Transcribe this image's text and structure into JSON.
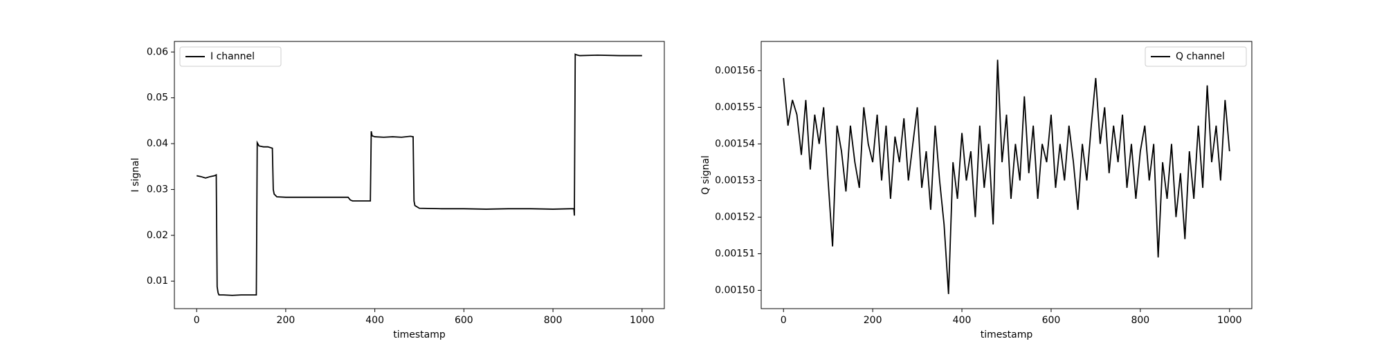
{
  "chart_data": [
    {
      "type": "line",
      "xlabel": "timestamp",
      "ylabel": "I signal",
      "legend": "upper left",
      "x": [
        0,
        10,
        20,
        30,
        40,
        44,
        46,
        48,
        50,
        60,
        80,
        100,
        120,
        134,
        136,
        140,
        150,
        160,
        170,
        172,
        174,
        180,
        200,
        250,
        300,
        340,
        345,
        350,
        380,
        390,
        392,
        394,
        400,
        420,
        440,
        460,
        480,
        486,
        488,
        490,
        500,
        550,
        600,
        650,
        700,
        750,
        800,
        840,
        847,
        848,
        850,
        852,
        860,
        900,
        950,
        1000
      ],
      "series": [
        {
          "name": "I channel",
          "color": "#000000",
          "values": [
            0.033,
            0.0328,
            0.0325,
            0.0328,
            0.033,
            0.0332,
            0.0088,
            0.0075,
            0.007,
            0.007,
            0.0069,
            0.007,
            0.007,
            0.007,
            0.0402,
            0.0395,
            0.0393,
            0.0393,
            0.039,
            0.03,
            0.029,
            0.0284,
            0.0283,
            0.0283,
            0.0283,
            0.0283,
            0.0277,
            0.0275,
            0.0275,
            0.0275,
            0.0427,
            0.0417,
            0.0415,
            0.0414,
            0.0415,
            0.0414,
            0.0416,
            0.0415,
            0.0275,
            0.0265,
            0.0259,
            0.0258,
            0.0258,
            0.0257,
            0.0258,
            0.0258,
            0.0257,
            0.0258,
            0.0258,
            0.0243,
            0.0595,
            0.0594,
            0.0592,
            0.0593,
            0.0592,
            0.0592
          ]
        }
      ],
      "xlim": [
        -50,
        1050
      ],
      "ylim": [
        0.004,
        0.0623
      ],
      "xticks": [
        0,
        200,
        400,
        600,
        800,
        1000
      ],
      "yticks": [
        0.01,
        0.02,
        0.03,
        0.04,
        0.05,
        0.06
      ]
    },
    {
      "type": "line",
      "xlabel": "timestamp",
      "ylabel": "Q signal",
      "legend": "upper right",
      "x": [
        0,
        10,
        20,
        30,
        40,
        50,
        60,
        70,
        80,
        90,
        100,
        110,
        120,
        130,
        140,
        150,
        160,
        170,
        180,
        190,
        200,
        210,
        220,
        230,
        240,
        250,
        260,
        270,
        280,
        290,
        300,
        310,
        320,
        330,
        340,
        350,
        360,
        370,
        380,
        390,
        400,
        410,
        420,
        430,
        440,
        450,
        460,
        470,
        480,
        490,
        500,
        510,
        520,
        530,
        540,
        550,
        560,
        570,
        580,
        590,
        600,
        610,
        620,
        630,
        640,
        650,
        660,
        670,
        680,
        690,
        700,
        710,
        720,
        730,
        740,
        750,
        760,
        770,
        780,
        790,
        800,
        810,
        820,
        830,
        840,
        850,
        860,
        870,
        880,
        890,
        900,
        910,
        920,
        930,
        940,
        950,
        960,
        970,
        980,
        990,
        1000
      ],
      "series": [
        {
          "name": "Q channel",
          "color": "#000000",
          "values": [
            0.001558,
            0.001545,
            0.001552,
            0.001548,
            0.001537,
            0.001552,
            0.001533,
            0.001548,
            0.00154,
            0.00155,
            0.00153,
            0.001512,
            0.001545,
            0.001538,
            0.001527,
            0.001545,
            0.001535,
            0.001528,
            0.00155,
            0.00154,
            0.001535,
            0.001548,
            0.00153,
            0.001545,
            0.001525,
            0.001542,
            0.001535,
            0.001547,
            0.00153,
            0.00154,
            0.00155,
            0.001528,
            0.001538,
            0.001522,
            0.001545,
            0.00153,
            0.001518,
            0.001499,
            0.001535,
            0.001525,
            0.001543,
            0.00153,
            0.001538,
            0.00152,
            0.001545,
            0.001528,
            0.00154,
            0.001518,
            0.001563,
            0.001535,
            0.001548,
            0.001525,
            0.00154,
            0.00153,
            0.001553,
            0.001532,
            0.001545,
            0.001525,
            0.00154,
            0.001535,
            0.001548,
            0.001528,
            0.00154,
            0.00153,
            0.001545,
            0.001535,
            0.001522,
            0.00154,
            0.00153,
            0.001545,
            0.001558,
            0.00154,
            0.00155,
            0.001532,
            0.001545,
            0.001535,
            0.001548,
            0.001528,
            0.00154,
            0.001525,
            0.001538,
            0.001545,
            0.00153,
            0.00154,
            0.001509,
            0.001535,
            0.001525,
            0.00154,
            0.00152,
            0.001532,
            0.001514,
            0.001538,
            0.001525,
            0.001545,
            0.001528,
            0.001556,
            0.001535,
            0.001545,
            0.00153,
            0.001552,
            0.001538
          ]
        }
      ],
      "xlim": [
        -50,
        1050
      ],
      "ylim": [
        0.001495,
        0.001568
      ],
      "xticks": [
        0,
        200,
        400,
        600,
        800,
        1000
      ],
      "yticks": [
        {
          "value": 0.0015,
          "label": "0.00150"
        },
        {
          "value": 0.00151,
          "label": "0.00151"
        },
        {
          "value": 0.00152,
          "label": "0.00152"
        },
        {
          "value": 0.00153,
          "label": "0.00153"
        },
        {
          "value": 0.00154,
          "label": "0.00154"
        },
        {
          "value": 0.00155,
          "label": "0.00155"
        },
        {
          "value": 0.00156,
          "label": "0.00156"
        }
      ]
    }
  ]
}
